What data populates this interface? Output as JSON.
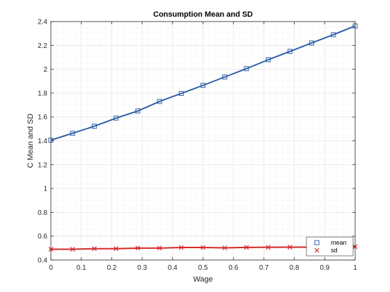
{
  "chart_data": {
    "type": "line",
    "title": "Consumption Mean and SD",
    "xlabel": "Wage",
    "ylabel": "C Mean and SD",
    "xlim": [
      0,
      1
    ],
    "ylim": [
      0.4,
      2.4
    ],
    "xticks": [
      0,
      0.1,
      0.2,
      0.3,
      0.4,
      0.5,
      0.6,
      0.7,
      0.8,
      0.9,
      1
    ],
    "xtick_labels": [
      "0",
      "0.1",
      "0.2",
      "0.3",
      "0.4",
      "0.5",
      "0.6",
      "0.7",
      "0.8",
      "0.9",
      "1"
    ],
    "yticks": [
      0.4,
      0.6,
      0.8,
      1,
      1.2,
      1.4,
      1.6,
      1.8,
      2,
      2.2,
      2.4
    ],
    "ytick_labels": [
      "0.4",
      "0.6",
      "0.8",
      "1",
      "1.2",
      "1.4",
      "1.6",
      "1.8",
      "2",
      "2.2",
      "2.4"
    ],
    "grid": true,
    "minor_grid": true,
    "legend_position": "bottom-right",
    "x": [
      0,
      0.0714,
      0.1429,
      0.2143,
      0.2857,
      0.3571,
      0.4286,
      0.5,
      0.5714,
      0.6429,
      0.7143,
      0.7857,
      0.8571,
      0.9286,
      1
    ],
    "series": [
      {
        "name": "mean",
        "color": "#2f5fa8",
        "marker": "square",
        "values": [
          1.405,
          1.463,
          1.522,
          1.59,
          1.65,
          1.73,
          1.797,
          1.865,
          1.935,
          2.005,
          2.08,
          2.15,
          2.22,
          2.29,
          2.363
        ]
      },
      {
        "name": "sd",
        "color": "#d62728",
        "marker": "x",
        "values": [
          0.49,
          0.49,
          0.495,
          0.495,
          0.5,
          0.5,
          0.505,
          0.505,
          0.502,
          0.506,
          0.507,
          0.508,
          0.508,
          0.51,
          0.512
        ]
      }
    ]
  }
}
